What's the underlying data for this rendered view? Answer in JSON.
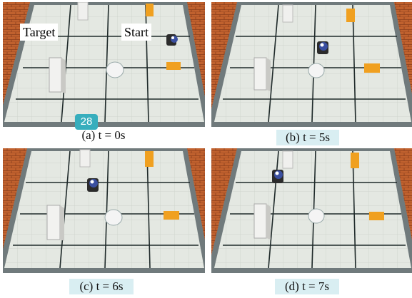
{
  "figure": {
    "panels": [
      {
        "id": "a",
        "caption": "(a) t = 0s"
      },
      {
        "id": "b",
        "caption": "(b) t = 5s"
      },
      {
        "id": "c",
        "caption": "(c) t = 6s"
      },
      {
        "id": "d",
        "caption": "(d) t = 7s"
      }
    ],
    "labels": {
      "target": "Target",
      "start": "Start"
    },
    "badge": "28",
    "colors": {
      "brick": "#c0612e",
      "floor": "#dfe3dc",
      "grid": "#1f2a2a",
      "obstacle_box": "#f2f2f0",
      "orange_block": "#f0a020",
      "robot": "#3a4fa0",
      "caption_highlight": "#d9eef2",
      "badge": "#37aebd"
    }
  }
}
